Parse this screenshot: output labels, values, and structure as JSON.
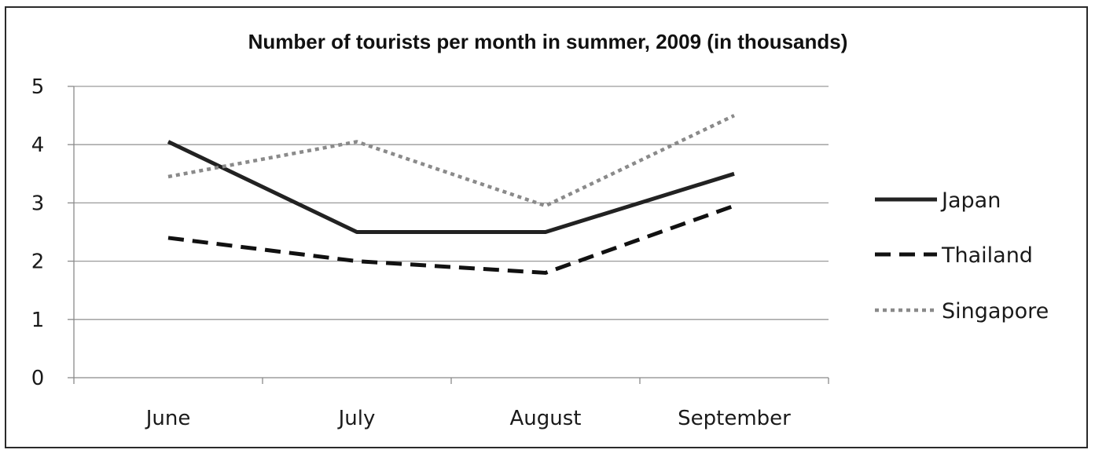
{
  "chart_data": {
    "type": "line",
    "title": "Number of tourists per month in summer, 2009 (in thousands)",
    "xlabel": "",
    "ylabel": "",
    "categories": [
      "June",
      "July",
      "August",
      "September"
    ],
    "y_ticks": [
      "0",
      "1",
      "2",
      "3",
      "4",
      "5"
    ],
    "ylim": [
      0,
      5
    ],
    "grid": true,
    "legend_position": "right",
    "series": [
      {
        "name": "Japan",
        "values": [
          4.05,
          2.5,
          2.5,
          3.5
        ],
        "color": "#222222",
        "style": "solid"
      },
      {
        "name": "Thailand",
        "values": [
          2.4,
          2.0,
          1.8,
          2.95
        ],
        "color": "#111111",
        "style": "dashed"
      },
      {
        "name": "Singapore",
        "values": [
          3.45,
          4.05,
          2.95,
          4.5
        ],
        "color": "#8a8a8a",
        "style": "dotted"
      }
    ]
  }
}
